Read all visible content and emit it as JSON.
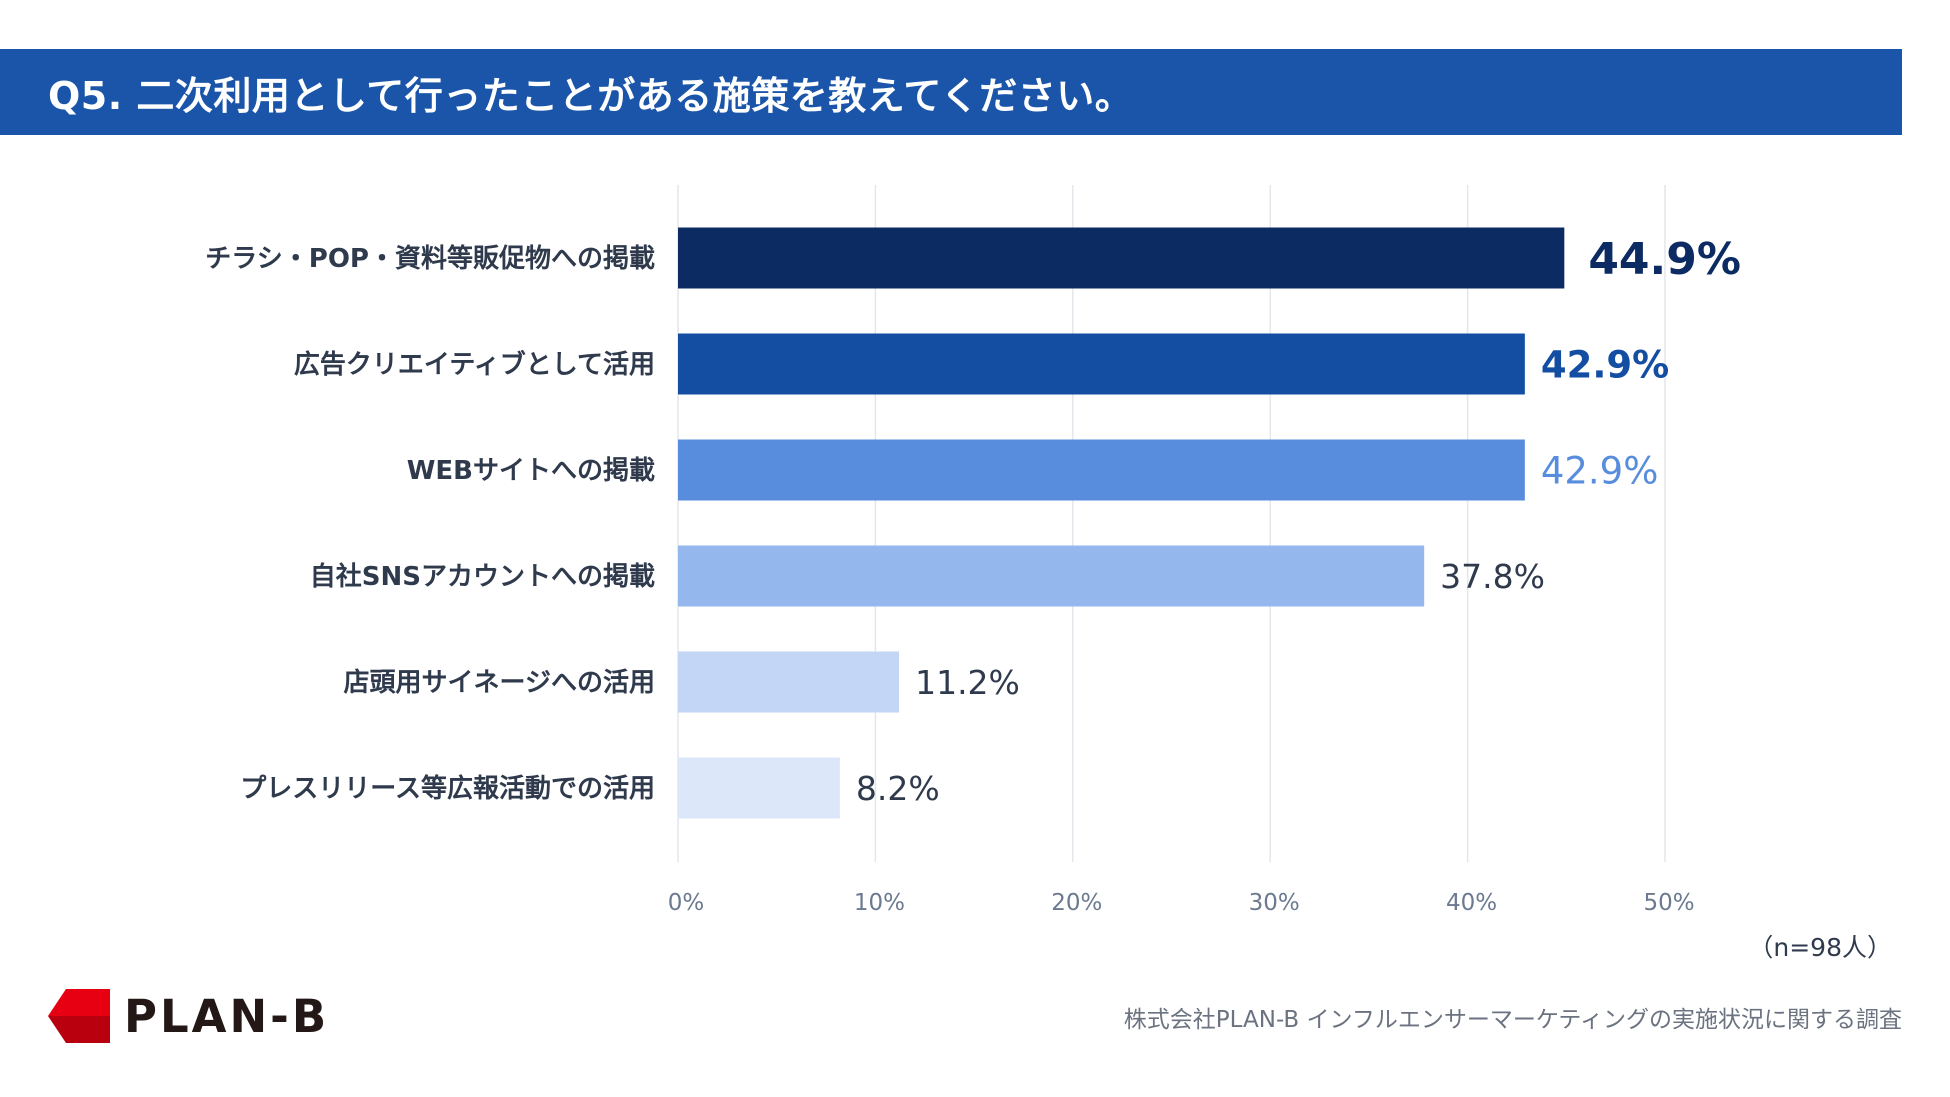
{
  "header": {
    "title": "Q5. 二次利用として行ったことがある施策を教えてください。"
  },
  "colors": {
    "title_bg": "#1a55a9",
    "title_text": "#ffffff",
    "grid": "#e3e6ea",
    "category_text": "#2f3a4d",
    "tick_text": "#6b7a90",
    "logo_red": "#e60012",
    "logo_dark": "#b8000f"
  },
  "chart_data": {
    "type": "bar",
    "orientation": "horizontal",
    "title": "Q5. 二次利用として行ったことがある施策を教えてください。",
    "xlabel": "",
    "ylabel": "",
    "xlim": [
      0,
      50
    ],
    "grid": true,
    "categories": [
      "チラシ・POP・資料等販促物への掲載",
      "広告クリエイティブとして活用",
      "WEBサイトへの掲載",
      "自社SNSアカウントへの掲載",
      "店頭用サイネージへの活用",
      "プレスリリース等広報活動での活用"
    ],
    "values": [
      44.9,
      42.9,
      42.9,
      37.8,
      11.2,
      8.2
    ],
    "value_labels": [
      "44.9%",
      "42.9%",
      "42.9%",
      "37.8%",
      "11.2%",
      "8.2%"
    ],
    "bar_colors": [
      "#0d2b63",
      "#134ea3",
      "#588dde",
      "#94b7ee",
      "#c3d6f5",
      "#dce7f9"
    ],
    "label_colors": [
      "#0d2b63",
      "#134ea3",
      "#588dde",
      "#2f3a4d",
      "#2f3a4d",
      "#2f3a4d"
    ],
    "label_bold": [
      true,
      true,
      false,
      false,
      false,
      false
    ],
    "label_emphasis": [
      "large",
      "medium",
      "medium",
      "normal",
      "normal",
      "normal"
    ],
    "ticks": [
      0,
      10,
      20,
      30,
      40,
      50
    ],
    "tick_labels": [
      "0%",
      "10%",
      "20%",
      "30%",
      "40%",
      "50%"
    ]
  },
  "footnote": {
    "sample_size": "（n=98人）"
  },
  "footer": {
    "logo_text": "PLAN-B",
    "source": "株式会社PLAN-B インフルエンサーマーケティングの実施状況に関する調査"
  }
}
